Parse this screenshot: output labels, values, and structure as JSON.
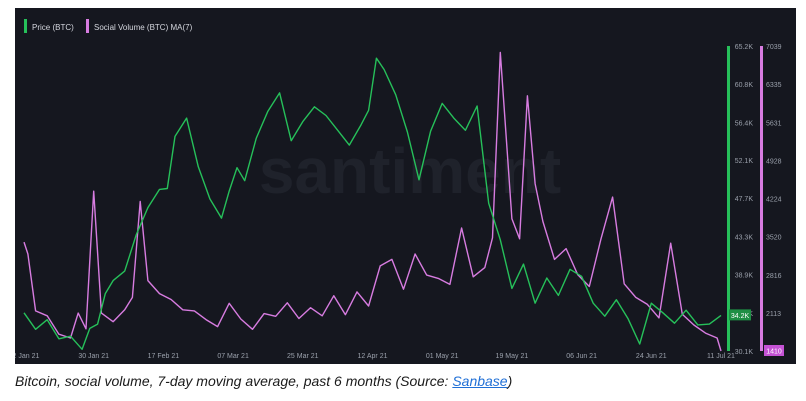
{
  "chart_data": {
    "type": "line",
    "watermark": "santiment",
    "x_ticks": [
      "12 Jan 21",
      "30 Jan 21",
      "17 Feb 21",
      "07 Mar 21",
      "25 Mar 21",
      "12 Apr 21",
      "01 May 21",
      "19 May 21",
      "06 Jun 21",
      "24 Jun 21",
      "11 Jul 21"
    ],
    "price_axis_ticks": [
      "65.2K",
      "60.8K",
      "56.4K",
      "52.1K",
      "47.7K",
      "43.3K",
      "38.9K",
      "34.5K",
      "30.1K"
    ],
    "social_axis_ticks": [
      "7039",
      "6335",
      "5631",
      "4928",
      "4224",
      "3520",
      "2816",
      "2113"
    ],
    "price_current_label": "34.2K",
    "social_current_label": "1410",
    "price_ylim": [
      30100,
      65200
    ],
    "social_ylim": [
      1410,
      7039
    ],
    "series": [
      {
        "name": "Price (BTC)",
        "color": "#26c05a",
        "x": [
          0,
          3,
          6,
          9,
          12,
          15,
          17,
          19,
          21,
          23,
          26,
          29,
          32,
          35,
          37,
          39,
          42,
          45,
          48,
          51,
          53,
          55,
          57,
          60,
          63,
          66,
          69,
          72,
          75,
          78,
          81,
          84,
          87,
          89,
          91,
          93,
          96,
          99,
          102,
          105,
          108,
          111,
          114,
          117,
          120,
          123,
          126,
          129,
          132,
          135,
          138,
          141,
          144,
          147,
          150,
          153,
          156,
          159,
          162,
          165,
          168,
          171,
          174,
          177,
          180
        ],
        "values": [
          34500,
          32600,
          33700,
          31500,
          31800,
          30300,
          32700,
          33200,
          36700,
          38200,
          39300,
          43500,
          46600,
          48700,
          48800,
          54800,
          56900,
          51300,
          47600,
          45400,
          48500,
          51200,
          49700,
          54600,
          57700,
          59800,
          54300,
          56500,
          58200,
          57200,
          55500,
          53800,
          56100,
          57800,
          63800,
          62500,
          59600,
          55300,
          49800,
          55400,
          58600,
          56900,
          55500,
          58300,
          47100,
          42900,
          37300,
          40100,
          35600,
          38500,
          36500,
          39500,
          38700,
          35600,
          34100,
          36000,
          33800,
          30900,
          35600,
          34500,
          33300,
          34800,
          33100,
          33200,
          34200
        ]
      },
      {
        "name": "Social Volume (BTC) MA(7)",
        "color": "#d77ce0",
        "x": [
          0,
          1,
          3,
          6,
          9,
          12,
          14,
          16,
          18,
          20,
          23,
          26,
          28,
          30,
          32,
          35,
          38,
          41,
          44,
          47,
          50,
          53,
          56,
          59,
          62,
          65,
          68,
          71,
          74,
          77,
          80,
          83,
          86,
          89,
          92,
          95,
          98,
          101,
          104,
          107,
          110,
          113,
          116,
          119,
          121,
          123,
          126,
          128,
          130,
          132,
          134,
          137,
          140,
          143,
          146,
          149,
          152,
          155,
          158,
          161,
          164,
          167,
          170,
          173,
          176,
          179,
          180
        ],
        "values": [
          3420,
          3200,
          2150,
          2060,
          1720,
          1650,
          2110,
          1820,
          4360,
          2110,
          1950,
          2170,
          2400,
          4170,
          2710,
          2470,
          2360,
          2170,
          2150,
          1990,
          1860,
          2290,
          2000,
          1810,
          2100,
          2050,
          2300,
          2010,
          2210,
          2060,
          2430,
          2080,
          2500,
          2240,
          2980,
          3100,
          2550,
          3200,
          2810,
          2750,
          2640,
          3680,
          2780,
          2950,
          3500,
          6920,
          3850,
          3480,
          6120,
          4500,
          3800,
          3100,
          3300,
          2820,
          2600,
          3480,
          4250,
          2650,
          2400,
          2270,
          2020,
          3400,
          2090,
          1890,
          1740,
          1650,
          1410
        ]
      }
    ],
    "legend": "top-left"
  },
  "caption": {
    "text": "Bitcoin, social volume, 7-day moving average, past 6 months (Source: ",
    "link": "Sanbase",
    "suffix": ")"
  }
}
